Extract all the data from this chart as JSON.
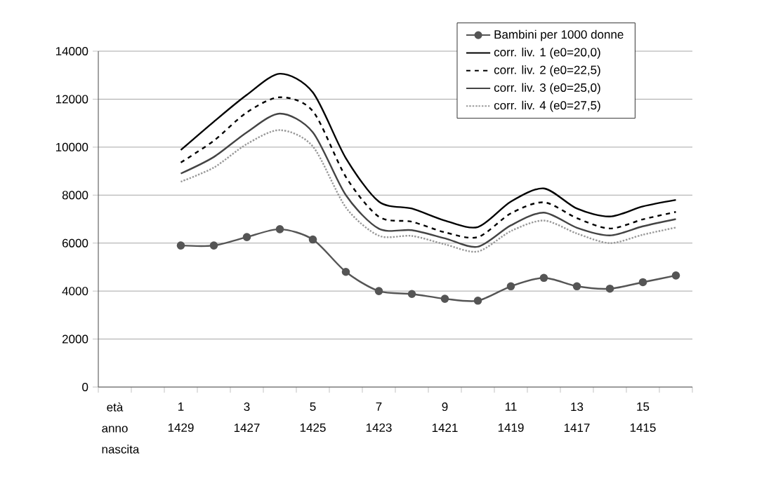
{
  "chart_data": {
    "type": "line",
    "categories": [
      "età anno nascita",
      null,
      "1 1429",
      null,
      "3 1427",
      null,
      "5 1425",
      null,
      "7 1423",
      null,
      "9 1421",
      null,
      "11 1419",
      null,
      "13 1417",
      null,
      "15 1415",
      null
    ],
    "series": [
      {
        "name": "Bambini per 1000 donne",
        "color": "#555555",
        "marker": "circle",
        "line_style": "solid",
        "values": [
          null,
          null,
          5900,
          5900,
          6250,
          6580,
          6150,
          4800,
          4000,
          3880,
          3680,
          3600,
          4200,
          4550,
          4200,
          4100,
          4370,
          4650
        ]
      },
      {
        "name": "corr. liv. 1 (e0=20,0)",
        "color": "#000000",
        "marker": "none",
        "line_style": "solid",
        "values": [
          null,
          null,
          9880,
          11060,
          12180,
          13060,
          12280,
          9540,
          7730,
          7440,
          6940,
          6670,
          7730,
          8280,
          7440,
          7110,
          7530,
          7800
        ]
      },
      {
        "name": "corr. liv. 2 (e0=22,5)",
        "color": "#000000",
        "marker": "none",
        "line_style": "dashed",
        "values": [
          null,
          null,
          9360,
          10270,
          11450,
          12080,
          11500,
          8760,
          7100,
          6890,
          6450,
          6250,
          7240,
          7700,
          7040,
          6610,
          6990,
          7300
        ]
      },
      {
        "name": "corr. liv. 3 (e0=25,0)",
        "color": "#444444",
        "marker": "none",
        "line_style": "solid",
        "values": [
          null,
          null,
          8900,
          9590,
          10620,
          11400,
          10620,
          8000,
          6600,
          6540,
          6200,
          5850,
          6740,
          7270,
          6640,
          6320,
          6700,
          7000
        ]
      },
      {
        "name": "corr. liv. 4 (e0=27,5)",
        "color": "#999999",
        "marker": "none",
        "line_style": "dotted",
        "values": [
          null,
          null,
          8560,
          9150,
          10130,
          10710,
          10030,
          7490,
          6310,
          6300,
          5950,
          5650,
          6500,
          6940,
          6400,
          6000,
          6350,
          6650
        ]
      }
    ],
    "ylim": [
      0,
      14000
    ],
    "yticks": [
      0,
      2000,
      4000,
      6000,
      8000,
      10000,
      12000,
      14000
    ],
    "grid": "y",
    "legend": "top right"
  }
}
